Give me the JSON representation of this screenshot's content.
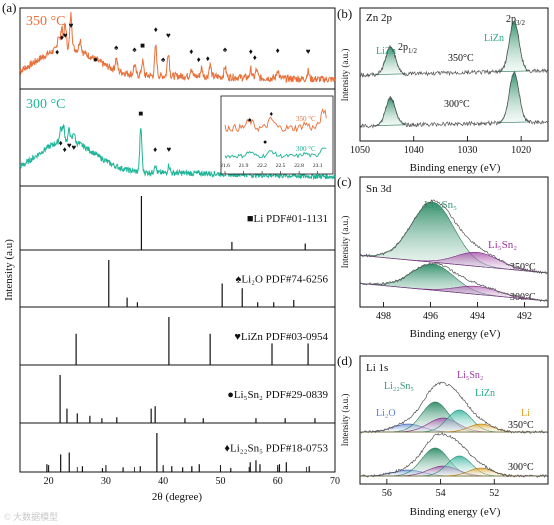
{
  "watermark": "© 大数据模型",
  "chart_data": [
    {
      "panel": "(a)",
      "type": "line",
      "xlabel": "2θ (degree)",
      "ylabel": "Intensity (a.u)",
      "xlim": [
        15,
        70
      ],
      "xticks": [
        20,
        30,
        40,
        50,
        60,
        70
      ],
      "series": [
        {
          "name": "350 °C",
          "color": "#e8703a",
          "peaks": [
            {
              "x": 21.7,
              "h": 0.35
            },
            {
              "x": 22.3,
              "h": 0.55
            },
            {
              "x": 22.9,
              "h": 0.6
            },
            {
              "x": 23.9,
              "h": 0.85
            },
            {
              "x": 25.5,
              "h": 0.3
            },
            {
              "x": 31.8,
              "h": 0.3
            },
            {
              "x": 35.0,
              "h": 0.25
            },
            {
              "x": 36.4,
              "h": 0.35
            },
            {
              "x": 38.7,
              "h": 0.75
            },
            {
              "x": 40.9,
              "h": 0.6
            },
            {
              "x": 44.9,
              "h": 0.2
            },
            {
              "x": 46.7,
              "h": 0.2
            },
            {
              "x": 48.2,
              "h": 0.3
            },
            {
              "x": 50.8,
              "h": 0.25
            },
            {
              "x": 55.3,
              "h": 0.2
            },
            {
              "x": 56.3,
              "h": 0.2
            },
            {
              "x": 60.0,
              "h": 0.22
            },
            {
              "x": 65.3,
              "h": 0.2
            }
          ]
        },
        {
          "name": "300 °C",
          "color": "#1fb598",
          "peaks": [
            {
              "x": 22.1,
              "h": 0.35
            },
            {
              "x": 22.6,
              "h": 0.38
            },
            {
              "x": 23.6,
              "h": 0.3
            },
            {
              "x": 24.4,
              "h": 0.25
            },
            {
              "x": 36.1,
              "h": 1.1
            },
            {
              "x": 38.6,
              "h": 0.2
            },
            {
              "x": 41.0,
              "h": 0.2
            }
          ]
        }
      ],
      "symbols_350": [
        {
          "x": 22.3,
          "s": "♦"
        },
        {
          "x": 22.9,
          "s": "♥"
        },
        {
          "x": 23.9,
          "s": "♥"
        },
        {
          "x": 21.5,
          "s": "♦"
        },
        {
          "x": 28.2,
          "s": "●"
        },
        {
          "x": 31.8,
          "s": "♠"
        },
        {
          "x": 35.0,
          "s": "♠"
        },
        {
          "x": 36.4,
          "s": "■"
        },
        {
          "x": 38.7,
          "s": "♦"
        },
        {
          "x": 40.0,
          "s": "♠"
        },
        {
          "x": 40.9,
          "s": "♥"
        },
        {
          "x": 44.9,
          "s": "♦"
        },
        {
          "x": 46.2,
          "s": "♦"
        },
        {
          "x": 47.8,
          "s": "♦"
        },
        {
          "x": 50.8,
          "s": "♠"
        },
        {
          "x": 55.3,
          "s": "♦"
        },
        {
          "x": 56.0,
          "s": "♦"
        },
        {
          "x": 60.0,
          "s": "♦"
        },
        {
          "x": 65.3,
          "s": "♥"
        }
      ],
      "symbols_300": [
        {
          "x": 22.1,
          "s": "♦"
        },
        {
          "x": 22.8,
          "s": "♦"
        },
        {
          "x": 23.6,
          "s": "♥"
        },
        {
          "x": 24.4,
          "s": "♥"
        },
        {
          "x": 36.1,
          "s": "■"
        },
        {
          "x": 38.6,
          "s": "♦"
        },
        {
          "x": 41.0,
          "s": "♥"
        }
      ],
      "inset": {
        "xlim": [
          21.6,
          23.3
        ],
        "xticks": [
          "21.6",
          "21.9",
          "22.2",
          "22.5",
          "22.8",
          "23.1"
        ],
        "labels": [
          "350 °C",
          "300 °C"
        ]
      },
      "references": [
        {
          "label": "■Li PDF#01-1131",
          "lines": [
            {
              "x": 36.2,
              "h": 1.0
            },
            {
              "x": 52.0,
              "h": 0.15
            },
            {
              "x": 64.8,
              "h": 0.12
            }
          ]
        },
        {
          "label": "♠Li₂O PDF#74-6256",
          "lines": [
            {
              "x": 30.5,
              "h": 1.0
            },
            {
              "x": 33.7,
              "h": 0.2
            },
            {
              "x": 35.5,
              "h": 0.1
            },
            {
              "x": 50.3,
              "h": 0.5
            },
            {
              "x": 53.8,
              "h": 0.4
            },
            {
              "x": 56.5,
              "h": 0.1
            },
            {
              "x": 59.3,
              "h": 0.1
            },
            {
              "x": 62.8,
              "h": 0.15
            }
          ]
        },
        {
          "label": "♥LiZn PDF#03-0954",
          "lines": [
            {
              "x": 24.8,
              "h": 0.65
            },
            {
              "x": 41.0,
              "h": 1.0
            },
            {
              "x": 48.2,
              "h": 0.65
            },
            {
              "x": 59.0,
              "h": 0.45
            },
            {
              "x": 65.3,
              "h": 0.45
            }
          ]
        },
        {
          "label": "●Li₅Sn₂ PDF#29-0839",
          "lines": [
            {
              "x": 22.0,
              "h": 1.0
            },
            {
              "x": 23.2,
              "h": 0.3
            },
            {
              "x": 25.0,
              "h": 0.2
            },
            {
              "x": 27.2,
              "h": 0.15
            },
            {
              "x": 29.3,
              "h": 0.1
            },
            {
              "x": 31.9,
              "h": 0.12
            },
            {
              "x": 37.9,
              "h": 0.3
            },
            {
              "x": 38.6,
              "h": 0.35
            },
            {
              "x": 43.8,
              "h": 0.1
            },
            {
              "x": 47.0,
              "h": 0.1
            },
            {
              "x": 56.2,
              "h": 0.1
            },
            {
              "x": 61.3,
              "h": 0.1
            },
            {
              "x": 66.5,
              "h": 0.1
            }
          ]
        },
        {
          "label": "♦Li₂₂Sn₅ PDF#18-0753",
          "lines": [
            {
              "x": 19.7,
              "h": 0.2
            },
            {
              "x": 22.1,
              "h": 0.45
            },
            {
              "x": 23.6,
              "h": 0.5
            },
            {
              "x": 25.9,
              "h": 0.15
            },
            {
              "x": 29.4,
              "h": 0.1
            },
            {
              "x": 33.0,
              "h": 0.12
            },
            {
              "x": 36.0,
              "h": 0.15
            },
            {
              "x": 38.9,
              "h": 1.0
            },
            {
              "x": 41.5,
              "h": 0.15
            },
            {
              "x": 43.4,
              "h": 0.12
            },
            {
              "x": 45.0,
              "h": 0.15
            },
            {
              "x": 46.3,
              "h": 0.2
            },
            {
              "x": 51.8,
              "h": 0.1
            },
            {
              "x": 55.2,
              "h": 0.25
            },
            {
              "x": 56.2,
              "h": 0.3
            },
            {
              "x": 56.9,
              "h": 0.2
            },
            {
              "x": 60.3,
              "h": 0.2
            },
            {
              "x": 61.5,
              "h": 0.25
            },
            {
              "x": 65.5,
              "h": 0.15
            }
          ]
        }
      ]
    },
    {
      "panel": "(b)",
      "type": "area",
      "title": "Zn 2p",
      "xlabel": "Binding energy (eV)",
      "ylabel": "Intensity (a.u.)",
      "xlim": [
        1050,
        1015
      ],
      "xticks": [
        1050,
        1040,
        1030,
        1020
      ],
      "series_labels": [
        "350°C",
        "300°C"
      ],
      "peak_labels": [
        {
          "text": "LiZn",
          "color": "#2aa88e"
        },
        {
          "text": "2p",
          "sub": "1/2"
        },
        {
          "text": "LiZn",
          "color": "#2aa88e"
        },
        {
          "text": "2p",
          "sub": "3/2"
        }
      ],
      "peaks": [
        {
          "center": 1044.3,
          "name": "2p1/2"
        },
        {
          "center": 1021.3,
          "name": "2p3/2"
        }
      ]
    },
    {
      "panel": "(c)",
      "type": "area",
      "title": "Sn 3d",
      "xlabel": "Binding energy (eV)",
      "ylabel": "Intensity (a.u.)",
      "xlim": [
        499,
        491
      ],
      "xticks": [
        498,
        496,
        494,
        492
      ],
      "series_labels": [
        "350°C",
        "300°C"
      ],
      "components": [
        {
          "name": "Li₂₂Sn₅",
          "center": 495.9,
          "color": "#3a9a78"
        },
        {
          "name": "Li₅Sn₂",
          "center": 494.0,
          "color": "#9b3a9e"
        }
      ]
    },
    {
      "panel": "(d)",
      "type": "area",
      "title": "Li 1s",
      "xlabel": "Binding energy (eV)",
      "ylabel": "Intensity (a.u.)",
      "xlim": [
        57,
        50
      ],
      "xticks": [
        56,
        54,
        52
      ],
      "series_labels": [
        "350°C",
        "300°C"
      ],
      "components": [
        {
          "name": "Li₂O",
          "center": 55.2,
          "color": "#5a7fd0"
        },
        {
          "name": "Li₂₂Sn₅",
          "center": 54.2,
          "color": "#3a9a78"
        },
        {
          "name": "Li₅Sn₂",
          "center": 53.9,
          "color": "#9b3a9e"
        },
        {
          "name": "LiZn",
          "center": 53.3,
          "color": "#2fb39b"
        },
        {
          "name": "Li",
          "center": 52.5,
          "color": "#e0a020"
        }
      ]
    }
  ]
}
